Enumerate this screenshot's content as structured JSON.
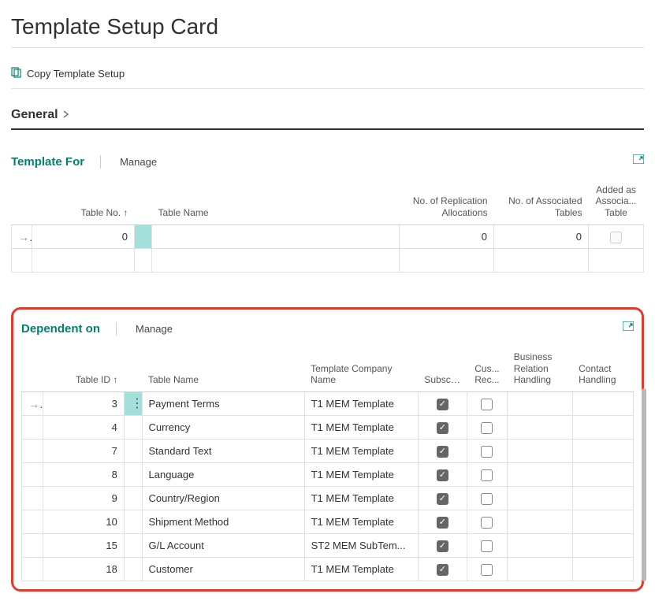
{
  "page": {
    "title": "Template Setup Card"
  },
  "actions": {
    "copy_label": "Copy Template Setup"
  },
  "sections": {
    "general_label": "General"
  },
  "templateFor": {
    "title": "Template For",
    "manage_label": "Manage",
    "headers": {
      "table_no": "Table No. ↑",
      "table_name": "Table Name",
      "repl_alloc": "No. of Replication Allocations",
      "assoc_tables": "No. of Associated Tables",
      "added_as": "Added as Associa... Table"
    },
    "row": {
      "table_no": "0",
      "repl_alloc": "0",
      "assoc_tables": "0"
    }
  },
  "dependentOn": {
    "title": "Dependent on",
    "manage_label": "Manage",
    "headers": {
      "table_id": "Table ID ↑",
      "table_name": "Table Name",
      "template_company": "Template Company Name",
      "subscri": "Subscri...",
      "cus_rec": "Cus... Rec...",
      "business_rel": "Business Relation Handling",
      "contact": "Contact Handling"
    },
    "rows": [
      {
        "id": "3",
        "name": "Payment Terms",
        "company": "T1 MEM Template",
        "sub": true,
        "cus": false
      },
      {
        "id": "4",
        "name": "Currency",
        "company": "T1 MEM Template",
        "sub": true,
        "cus": false
      },
      {
        "id": "7",
        "name": "Standard Text",
        "company": "T1 MEM Template",
        "sub": true,
        "cus": false
      },
      {
        "id": "8",
        "name": "Language",
        "company": "T1 MEM Template",
        "sub": true,
        "cus": false
      },
      {
        "id": "9",
        "name": "Country/Region",
        "company": "T1 MEM Template",
        "sub": true,
        "cus": false
      },
      {
        "id": "10",
        "name": "Shipment Method",
        "company": "T1 MEM Template",
        "sub": true,
        "cus": false
      },
      {
        "id": "15",
        "name": "G/L Account",
        "company": "ST2 MEM SubTem...",
        "sub": true,
        "cus": false
      },
      {
        "id": "18",
        "name": "Customer",
        "company": "T1 MEM Template",
        "sub": true,
        "cus": false
      }
    ]
  },
  "colors": {
    "accent": "#008272",
    "highlight_red": "#e23b2e",
    "selected_cell": "#a3e0dc"
  }
}
